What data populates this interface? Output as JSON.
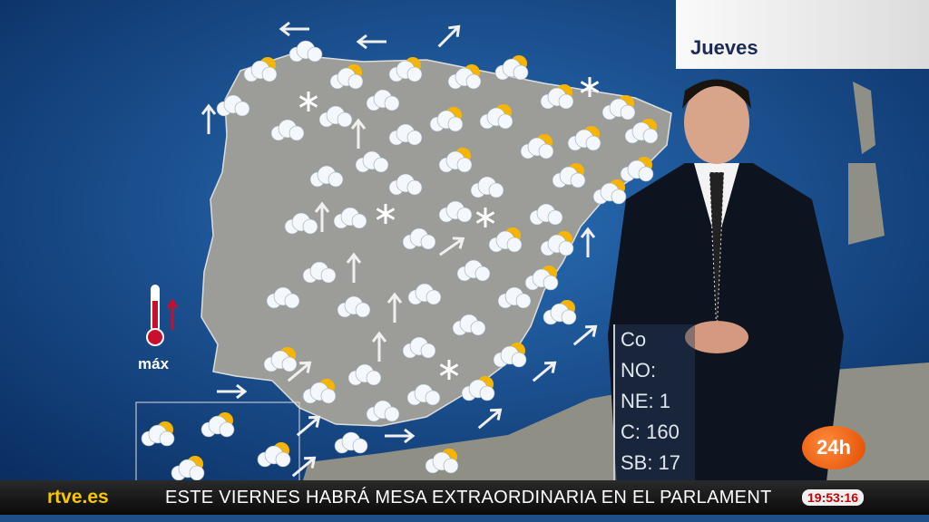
{
  "day_label": "Jueves",
  "legend": {
    "label": "máx",
    "icon": "thermometer-up-icon"
  },
  "info_box": [
    "Co",
    "NO:",
    "NE: 1",
    "C: 160",
    "SB: 17"
  ],
  "ticker": {
    "channel_logo": "rtve.es",
    "headline": "ESTE VIERNES HABRÁ MESA EXTRAORDINARIA EN EL PARLAMENT",
    "clock": "19:53:16"
  },
  "channel_badge": "24h",
  "colors": {
    "sea": "#1a5a9e",
    "land": "#9a9a96",
    "thermometer": "#c8102e",
    "badge": "#f05a00",
    "logo": "#f6c700"
  }
}
